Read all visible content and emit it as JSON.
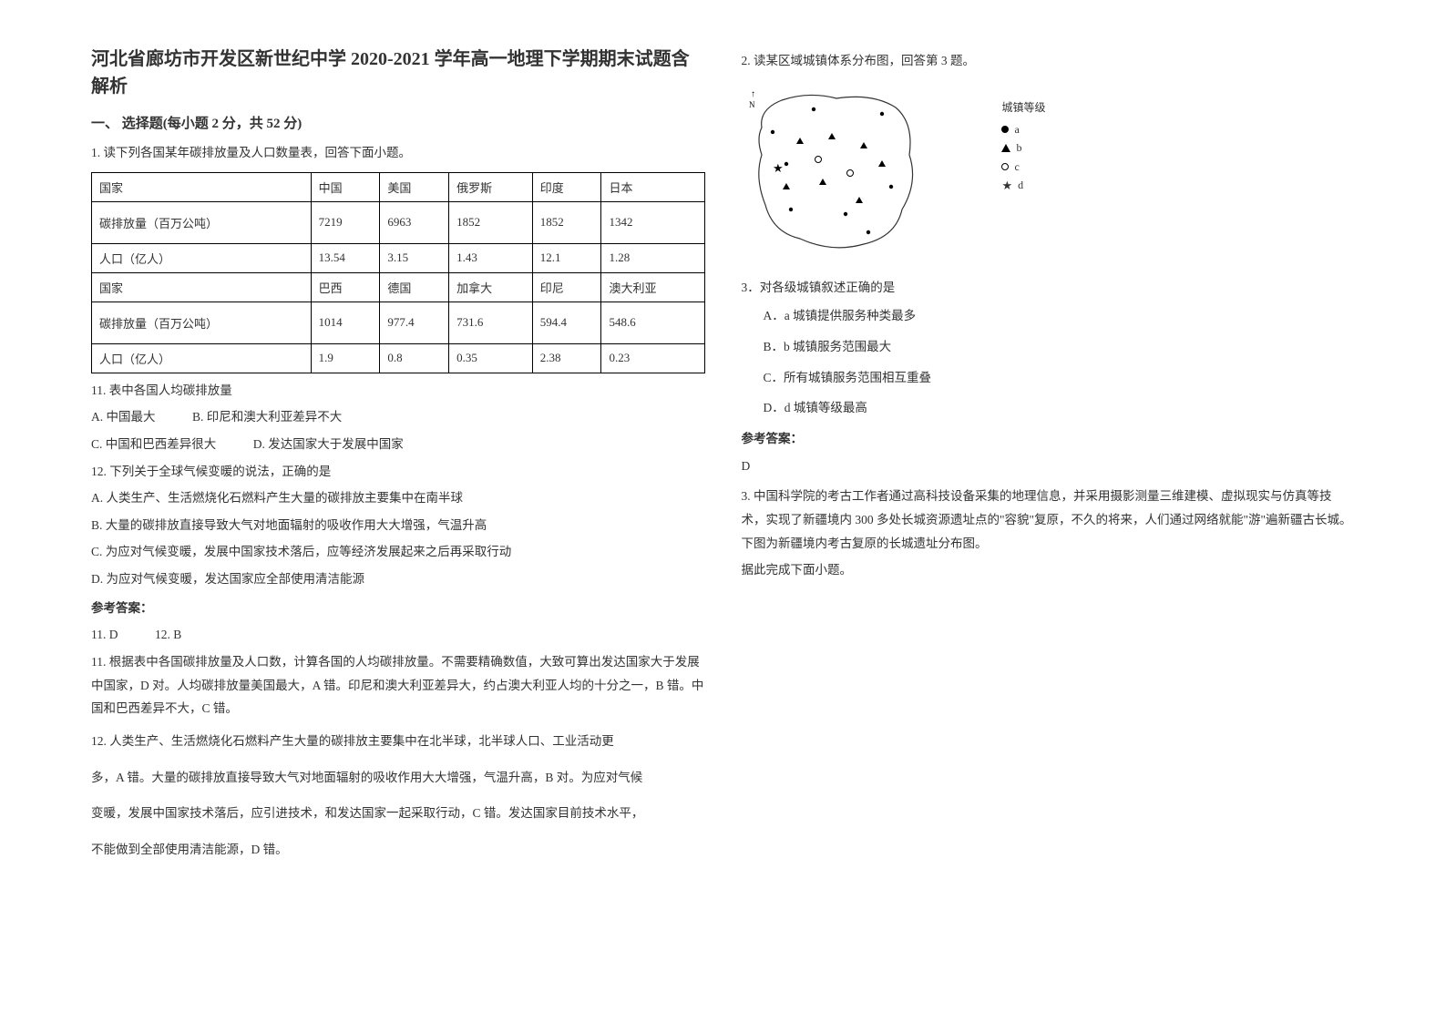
{
  "title": "河北省廊坊市开发区新世纪中学 2020-2021 学年高一地理下学期期末试题含解析",
  "section1": "一、 选择题(每小题 2 分，共 52 分)",
  "q1_intro": "1. 读下列各国某年碳排放量及人口数量表，回答下面小题。",
  "table1": {
    "columns_count": 6,
    "rows": [
      [
        "国家",
        "中国",
        "美国",
        "俄罗斯",
        "印度",
        "日本"
      ],
      [
        "碳排放量（百万公吨）",
        "7219",
        "6963",
        "1852",
        "1852",
        "1342"
      ],
      [
        "人口（亿人）",
        "13.54",
        "3.15",
        "1.43",
        "12.1",
        "1.28"
      ],
      [
        "国家",
        "巴西",
        "德国",
        "加拿大",
        "印尼",
        "澳大利亚"
      ],
      [
        "碳排放量（百万公吨）",
        "1014",
        "977.4",
        "731.6",
        "594.4",
        "548.6"
      ],
      [
        "人口（亿人）",
        "1.9",
        "0.8",
        "0.35",
        "2.38",
        "0.23"
      ]
    ]
  },
  "q11": "11.  表中各国人均碳排放量",
  "q11_opts_line1": "A. 中国最大　　　B. 印尼和澳大利亚差异不大",
  "q11_opts_line2": "C. 中国和巴西差异很大　　　D. 发达国家大于发展中国家",
  "q12": "12.  下列关于全球气候变暖的说法，正确的是",
  "q12_a": "A. 人类生产、生活燃烧化石燃料产生大量的碳排放主要集中在南半球",
  "q12_b": "B. 大量的碳排放直接导致大气对地面辐射的吸收作用大大增强，气温升高",
  "q12_c": "C. 为应对气候变暖，发展中国家技术落后，应等经济发展起来之后再采取行动",
  "q12_d": "D. 为应对气候变暖，发达国家应全部使用清洁能源",
  "ans_label": "参考答案：",
  "ans_1112": "11. D　　　12. B",
  "exp11": "11. 根据表中各国碳排放量及人口数，计算各国的人均碳排放量。不需要精确数值，大致可算出发达国家大于发展中国家，D 对。人均碳排放量美国最大，A 错。印尼和澳大利亚差异大，约占澳大利亚人均的十分之一，B 错。中国和巴西差异不大，C 错。",
  "exp12_a": "12. 人类生产、生活燃烧化石燃料产生大量的碳排放主要集中在北半球，北半球人口、工业活动更",
  "exp12_b": "多，A 错。大量的碳排放直接导致大气对地面辐射的吸收作用大大增强，气温升高，B 对。为应对气候",
  "exp12_c": "变暖，发展中国家技术落后，应引进技术，和发达国家一起采取行动，C 错。发达国家目前技术水平，",
  "exp12_d": "不能做到全部使用清洁能源，D 错。",
  "q2_intro": "2. 读某区域城镇体系分布图，回答第 3 题。",
  "map": {
    "legend_title": "城镇等级",
    "legend": [
      "a",
      "b",
      "c",
      "d"
    ],
    "outline_color": "#333",
    "points": {
      "dots": [
        [
          30,
          55
        ],
        [
          45,
          90
        ],
        [
          75,
          30
        ],
        [
          150,
          35
        ],
        [
          50,
          140
        ],
        [
          110,
          145
        ],
        [
          160,
          115
        ],
        [
          135,
          165
        ]
      ],
      "tris": [
        [
          60,
          65
        ],
        [
          95,
          60
        ],
        [
          130,
          70
        ],
        [
          85,
          110
        ],
        [
          45,
          115
        ],
        [
          125,
          130
        ],
        [
          150,
          90
        ]
      ],
      "circs": [
        [
          80,
          85
        ],
        [
          115,
          100
        ]
      ],
      "star": [
        35,
        95
      ]
    }
  },
  "q3": "3．对各级城镇叙述正确的是",
  "q3_a": "A．a 城镇提供服务种类最多",
  "q3_b": "B．b 城镇服务范围最大",
  "q3_c": "C．所有城镇服务范围相互重叠",
  "q3_d": "D．d 城镇等级最高",
  "ans2_label": "参考答案：",
  "ans3": "D",
  "q3_exp": "3. 中国科学院的考古工作者通过高科技设备采集的地理信息，并采用摄影测量三维建模、虚拟现实与仿真等技术，实现了新疆境内 300 多处长城资源遗址点的\"容貌\"复原，不久的将来，人们通过网络就能\"游\"遍新疆古长城。下图为新疆境内考古复原的长城遗址分布图。",
  "q3_exp_tail": "据此完成下面小题。"
}
